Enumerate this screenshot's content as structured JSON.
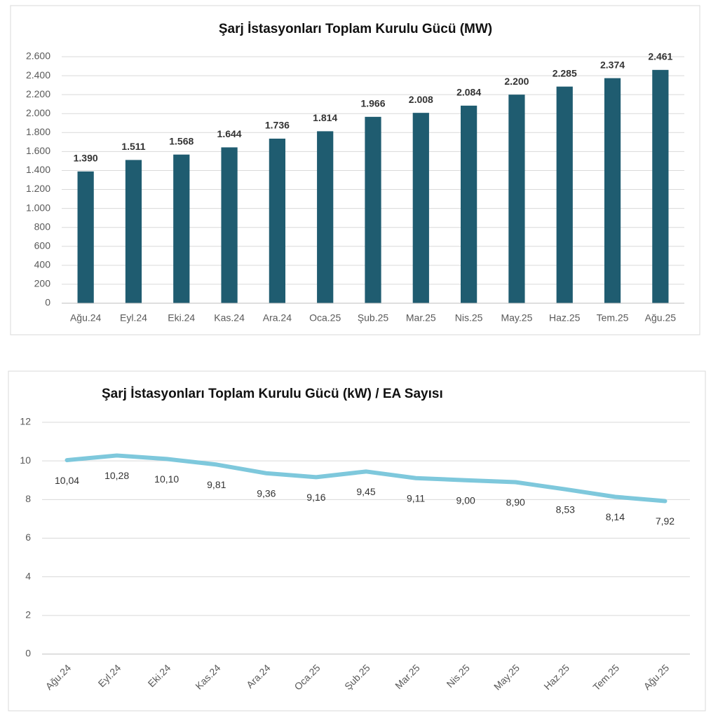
{
  "chart_data": [
    {
      "type": "bar",
      "title": "Şarj İstasyonları Toplam Kurulu Gücü (MW)",
      "categories": [
        "Ağu.24",
        "Eyl.24",
        "Eki.24",
        "Kas.24",
        "Ara.24",
        "Oca.25",
        "Şub.25",
        "Mar.25",
        "Nis.25",
        "May.25",
        "Haz.25",
        "Tem.25",
        "Ağu.25"
      ],
      "values": [
        1390,
        1511,
        1568,
        1644,
        1736,
        1814,
        1966,
        2008,
        2084,
        2200,
        2285,
        2374,
        2461
      ],
      "value_labels": [
        "1.390",
        "1.511",
        "1.568",
        "1.644",
        "1.736",
        "1.814",
        "1.966",
        "2.008",
        "2.084",
        "2.200",
        "2.285",
        "2.374",
        "2.461"
      ],
      "color": "#1f5c70",
      "ylim": [
        0,
        2600
      ],
      "yticks": [
        0,
        200,
        400,
        600,
        800,
        {
          "value": 1000,
          "label": "1.000"
        },
        {
          "value": 1200,
          "label": "1.200"
        },
        {
          "value": 1400,
          "label": "1.400"
        },
        {
          "value": 1600,
          "label": "1.600"
        },
        {
          "value": 1800,
          "label": "1.800"
        },
        {
          "value": 2000,
          "label": "2.000"
        },
        {
          "value": 2200,
          "label": "2.200"
        },
        {
          "value": 2400,
          "label": "2.400"
        },
        {
          "value": 2600,
          "label": "2.600"
        }
      ],
      "grid": true
    },
    {
      "type": "line",
      "title": "Şarj İstasyonları Toplam Kurulu Gücü (kW) / EA Sayısı",
      "categories": [
        "Ağu.24",
        "Eyl.24",
        "Eki.24",
        "Kas.24",
        "Ara.24",
        "Oca.25",
        "Şub.25",
        "Mar.25",
        "Nis.25",
        "May.25",
        "Haz.25",
        "Tem.25",
        "Ağu.25"
      ],
      "values": [
        10.04,
        10.28,
        10.1,
        9.81,
        9.36,
        9.16,
        9.45,
        9.11,
        9.0,
        8.9,
        8.53,
        8.14,
        7.92
      ],
      "value_labels": [
        "10,04",
        "10,28",
        "10,10",
        "9,81",
        "9,36",
        "9,16",
        "9,45",
        "9,11",
        "9,00",
        "8,90",
        "8,53",
        "8,14",
        "7,92"
      ],
      "color": "#7ec8dc",
      "ylim": [
        0,
        12
      ],
      "yticks": [
        0,
        2,
        4,
        6,
        8,
        10,
        12
      ],
      "grid": true
    }
  ]
}
